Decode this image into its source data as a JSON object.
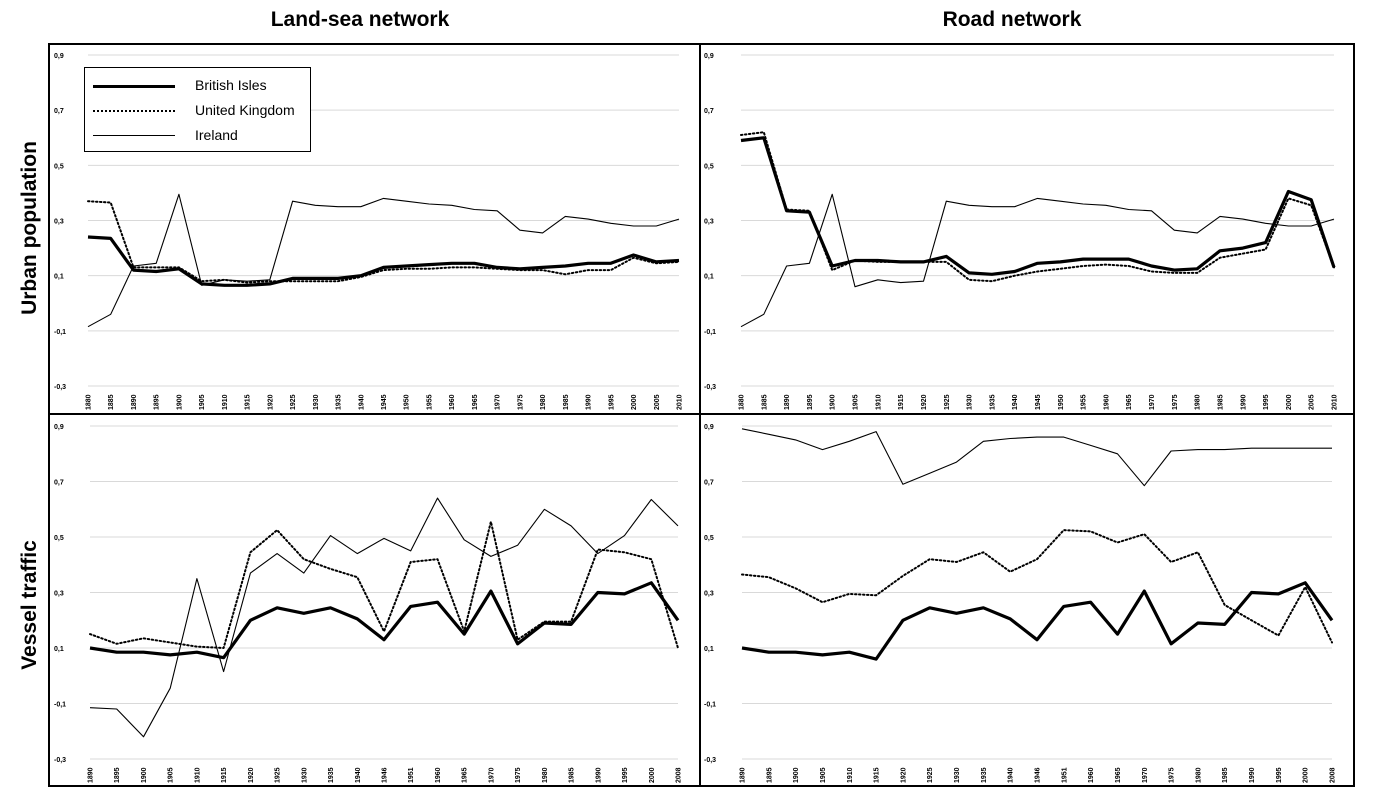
{
  "column_titles": [
    "Land-sea network",
    "Road network"
  ],
  "row_titles": [
    "Urban population",
    "Vessel traffic"
  ],
  "legend": [
    {
      "label": "British Isles",
      "style": "thick"
    },
    {
      "label": "United Kingdom",
      "style": "dotted"
    },
    {
      "label": "Ireland",
      "style": "thin"
    }
  ],
  "y_ticks": [
    "0,9",
    "0,7",
    "0,5",
    "0,3",
    "0,1",
    "-0,1",
    "-0,3"
  ],
  "chart_data": [
    {
      "type": "line",
      "panel": "urban-landsea",
      "row": "Urban population",
      "column": "Land-sea network",
      "ylim": [
        -0.3,
        0.9
      ],
      "grid": true,
      "legend_position": "top-left",
      "x": [
        "1880",
        "1885",
        "1890",
        "1895",
        "1900",
        "1905",
        "1910",
        "1915",
        "1920",
        "1925",
        "1930",
        "1935",
        "1940",
        "1945",
        "1950",
        "1955",
        "1960",
        "1965",
        "1970",
        "1975",
        "1980",
        "1985",
        "1990",
        "1995",
        "2000",
        "2005",
        "2010"
      ],
      "series": [
        {
          "name": "British Isles",
          "values": [
            0.24,
            0.235,
            0.12,
            0.115,
            0.125,
            0.07,
            0.065,
            0.065,
            0.07,
            0.09,
            0.09,
            0.09,
            0.1,
            0.13,
            0.135,
            0.14,
            0.145,
            0.145,
            0.13,
            0.125,
            0.13,
            0.135,
            0.145,
            0.145,
            0.175,
            0.15,
            0.155
          ]
        },
        {
          "name": "United Kingdom",
          "values": [
            0.37,
            0.365,
            0.13,
            0.13,
            0.13,
            0.08,
            0.085,
            0.075,
            0.08,
            0.08,
            0.08,
            0.08,
            0.095,
            0.12,
            0.125,
            0.125,
            0.13,
            0.13,
            0.125,
            0.12,
            0.12,
            0.105,
            0.12,
            0.12,
            0.165,
            0.145,
            0.15
          ]
        },
        {
          "name": "Ireland",
          "values": [
            -0.085,
            -0.04,
            0.135,
            0.145,
            0.395,
            0.065,
            0.085,
            0.08,
            0.085,
            0.37,
            0.355,
            0.35,
            0.35,
            0.38,
            0.37,
            0.36,
            0.355,
            0.34,
            0.335,
            0.265,
            0.255,
            0.315,
            0.305,
            0.29,
            0.28,
            0.28,
            0.305
          ]
        }
      ]
    },
    {
      "type": "line",
      "panel": "urban-road",
      "row": "Urban population",
      "column": "Road network",
      "ylim": [
        -0.3,
        0.9
      ],
      "grid": true,
      "x": [
        "1880",
        "1885",
        "1890",
        "1895",
        "1900",
        "1905",
        "1910",
        "1915",
        "1920",
        "1925",
        "1930",
        "1935",
        "1940",
        "1945",
        "1950",
        "1955",
        "1960",
        "1965",
        "1970",
        "1975",
        "1980",
        "1985",
        "1990",
        "1995",
        "2000",
        "2005",
        "2010"
      ],
      "series": [
        {
          "name": "British Isles",
          "values": [
            0.59,
            0.6,
            0.335,
            0.33,
            0.135,
            0.155,
            0.155,
            0.15,
            0.15,
            0.17,
            0.11,
            0.105,
            0.115,
            0.145,
            0.15,
            0.16,
            0.16,
            0.16,
            0.135,
            0.12,
            0.125,
            0.19,
            0.2,
            0.22,
            0.405,
            0.375,
            0.13
          ]
        },
        {
          "name": "United Kingdom",
          "values": [
            0.61,
            0.62,
            0.34,
            0.335,
            0.12,
            0.155,
            0.15,
            0.15,
            0.15,
            0.15,
            0.085,
            0.08,
            0.1,
            0.115,
            0.125,
            0.135,
            0.14,
            0.135,
            0.115,
            0.11,
            0.11,
            0.165,
            0.18,
            0.195,
            0.38,
            0.355,
            0.13
          ]
        },
        {
          "name": "Ireland",
          "values": [
            -0.085,
            -0.04,
            0.135,
            0.145,
            0.395,
            0.06,
            0.085,
            0.075,
            0.08,
            0.37,
            0.355,
            0.35,
            0.35,
            0.38,
            0.37,
            0.36,
            0.355,
            0.34,
            0.335,
            0.265,
            0.255,
            0.315,
            0.305,
            0.29,
            0.28,
            0.28,
            0.305
          ]
        }
      ]
    },
    {
      "type": "line",
      "panel": "vessel-landsea",
      "row": "Vessel traffic",
      "column": "Land-sea network",
      "ylim": [
        -0.3,
        0.9
      ],
      "grid": true,
      "x": [
        "1890",
        "1895",
        "1900",
        "1905",
        "1910",
        "1915",
        "1920",
        "1925",
        "1930",
        "1935",
        "1940",
        "1946",
        "1951",
        "1960",
        "1965",
        "1970",
        "1975",
        "1980",
        "1985",
        "1990",
        "1995",
        "2000",
        "2008"
      ],
      "series": [
        {
          "name": "British Isles",
          "values": [
            0.1,
            0.085,
            0.085,
            0.075,
            0.085,
            0.065,
            0.2,
            0.245,
            0.225,
            0.245,
            0.205,
            0.13,
            0.25,
            0.265,
            0.15,
            0.305,
            0.115,
            0.19,
            0.185,
            0.3,
            0.295,
            0.335,
            0.2
          ]
        },
        {
          "name": "United Kingdom",
          "values": [
            0.15,
            0.115,
            0.135,
            0.12,
            0.105,
            0.1,
            0.445,
            0.525,
            0.42,
            0.385,
            0.355,
            0.16,
            0.41,
            0.42,
            0.16,
            0.555,
            0.13,
            0.195,
            0.195,
            0.455,
            0.445,
            0.42,
            0.1
          ]
        },
        {
          "name": "Ireland",
          "values": [
            -0.115,
            -0.12,
            -0.22,
            -0.045,
            0.35,
            0.015,
            0.37,
            0.44,
            0.37,
            0.505,
            0.44,
            0.495,
            0.45,
            0.64,
            0.49,
            0.43,
            0.47,
            0.6,
            0.54,
            0.44,
            0.505,
            0.635,
            0.54
          ]
        }
      ]
    },
    {
      "type": "line",
      "panel": "vessel-road",
      "row": "Vessel traffic",
      "column": "Road network",
      "ylim": [
        -0.3,
        0.9
      ],
      "grid": true,
      "x": [
        "1890",
        "1895",
        "1900",
        "1905",
        "1910",
        "1915",
        "1920",
        "1925",
        "1930",
        "1935",
        "1940",
        "1946",
        "1951",
        "1960",
        "1965",
        "1970",
        "1975",
        "1980",
        "1985",
        "1990",
        "1995",
        "2000",
        "2008"
      ],
      "series": [
        {
          "name": "British Isles",
          "values": [
            0.1,
            0.085,
            0.085,
            0.075,
            0.085,
            0.06,
            0.2,
            0.245,
            0.225,
            0.245,
            0.205,
            0.13,
            0.25,
            0.265,
            0.15,
            0.305,
            0.115,
            0.19,
            0.185,
            0.3,
            0.295,
            0.335,
            0.2
          ]
        },
        {
          "name": "United Kingdom",
          "values": [
            0.365,
            0.355,
            0.315,
            0.265,
            0.295,
            0.29,
            0.36,
            0.42,
            0.41,
            0.445,
            0.375,
            0.42,
            0.525,
            0.52,
            0.48,
            0.51,
            0.41,
            0.445,
            0.255,
            0.2,
            0.145,
            0.32,
            0.12
          ]
        },
        {
          "name": "Ireland",
          "values": [
            0.89,
            0.87,
            0.85,
            0.815,
            0.845,
            0.88,
            0.69,
            0.73,
            0.77,
            0.845,
            0.855,
            0.86,
            0.86,
            0.83,
            0.8,
            0.685,
            0.81,
            0.815,
            0.815,
            0.82,
            0.82,
            0.82,
            0.82
          ]
        }
      ]
    }
  ]
}
